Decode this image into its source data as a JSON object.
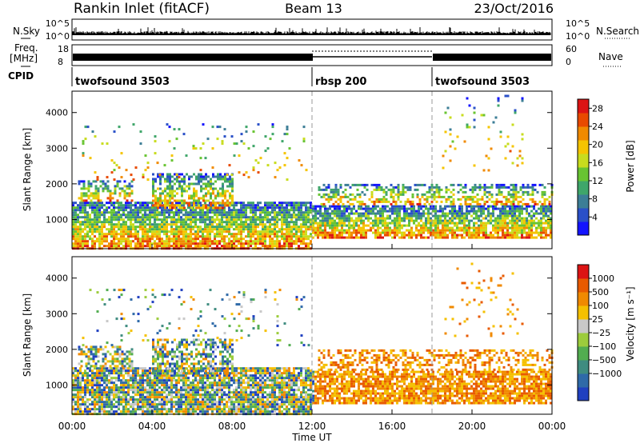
{
  "header": {
    "station": "Rankin Inlet (fitACF)",
    "beam": "Beam 13",
    "date": "23/Oct/2016"
  },
  "chart_data": [
    {
      "type": "line",
      "panel": "noise",
      "ylabel": "N.Sky",
      "y_ticks": [
        "10^5",
        "10^0"
      ],
      "right_label": "N.Search",
      "right_ticks": [
        "10^5",
        "10^0"
      ]
    },
    {
      "type": "line",
      "panel": "frequency",
      "ylabel": [
        "Freq.",
        "[MHz]"
      ],
      "y_ticks": [
        "18",
        "8"
      ],
      "right_label": "Nave",
      "right_ticks": [
        "60",
        "0"
      ]
    },
    {
      "type": "table",
      "panel": "cpid",
      "label": "CPID",
      "segments": [
        {
          "name": "twofsound 3503",
          "start_hour": 0,
          "end_hour": 12
        },
        {
          "name": "rbsp 200",
          "start_hour": 12,
          "end_hour": 18
        },
        {
          "name": "twofsound 3503",
          "start_hour": 18,
          "end_hour": 24
        }
      ]
    },
    {
      "type": "heatmap",
      "panel": "power",
      "ylabel": "Slant Range [km]",
      "xlim": [
        0,
        24
      ],
      "ylim": [
        180,
        4600
      ],
      "y_ticks": [
        1000,
        2000,
        3000,
        4000
      ],
      "colorbar": {
        "label": "Power [dB]",
        "ticks": [
          4,
          8,
          12,
          16,
          20,
          24,
          28
        ],
        "range": [
          0,
          30
        ],
        "colors": [
          "#1414ff",
          "#2a50c8",
          "#3c7e96",
          "#3fa66a",
          "#68c432",
          "#c8dc1e",
          "#f5c400",
          "#f08a00",
          "#e84a00",
          "#dc1414"
        ]
      }
    },
    {
      "type": "heatmap",
      "panel": "velocity",
      "ylabel": "Slant Range [km]",
      "xlabel": "Time UT",
      "xlim": [
        0,
        24
      ],
      "ylim": [
        180,
        4600
      ],
      "x_ticks": [
        "00:00",
        "04:00",
        "08:00",
        "12:00",
        "16:00",
        "20:00",
        "00:00"
      ],
      "y_ticks": [
        1000,
        2000,
        3000,
        4000
      ],
      "colorbar": {
        "label": "Velocity [m s⁻¹]",
        "ticks": [
          "1000",
          "500",
          "100",
          "25",
          "−25",
          "−100",
          "−500",
          "−1000"
        ],
        "colors": [
          "#2040c0",
          "#2f6aa8",
          "#3f8c80",
          "#52ad50",
          "#9ccc3c",
          "#c8c8c8",
          "#f5c000",
          "#f08a00",
          "#e85a00",
          "#dc1414"
        ]
      }
    }
  ]
}
